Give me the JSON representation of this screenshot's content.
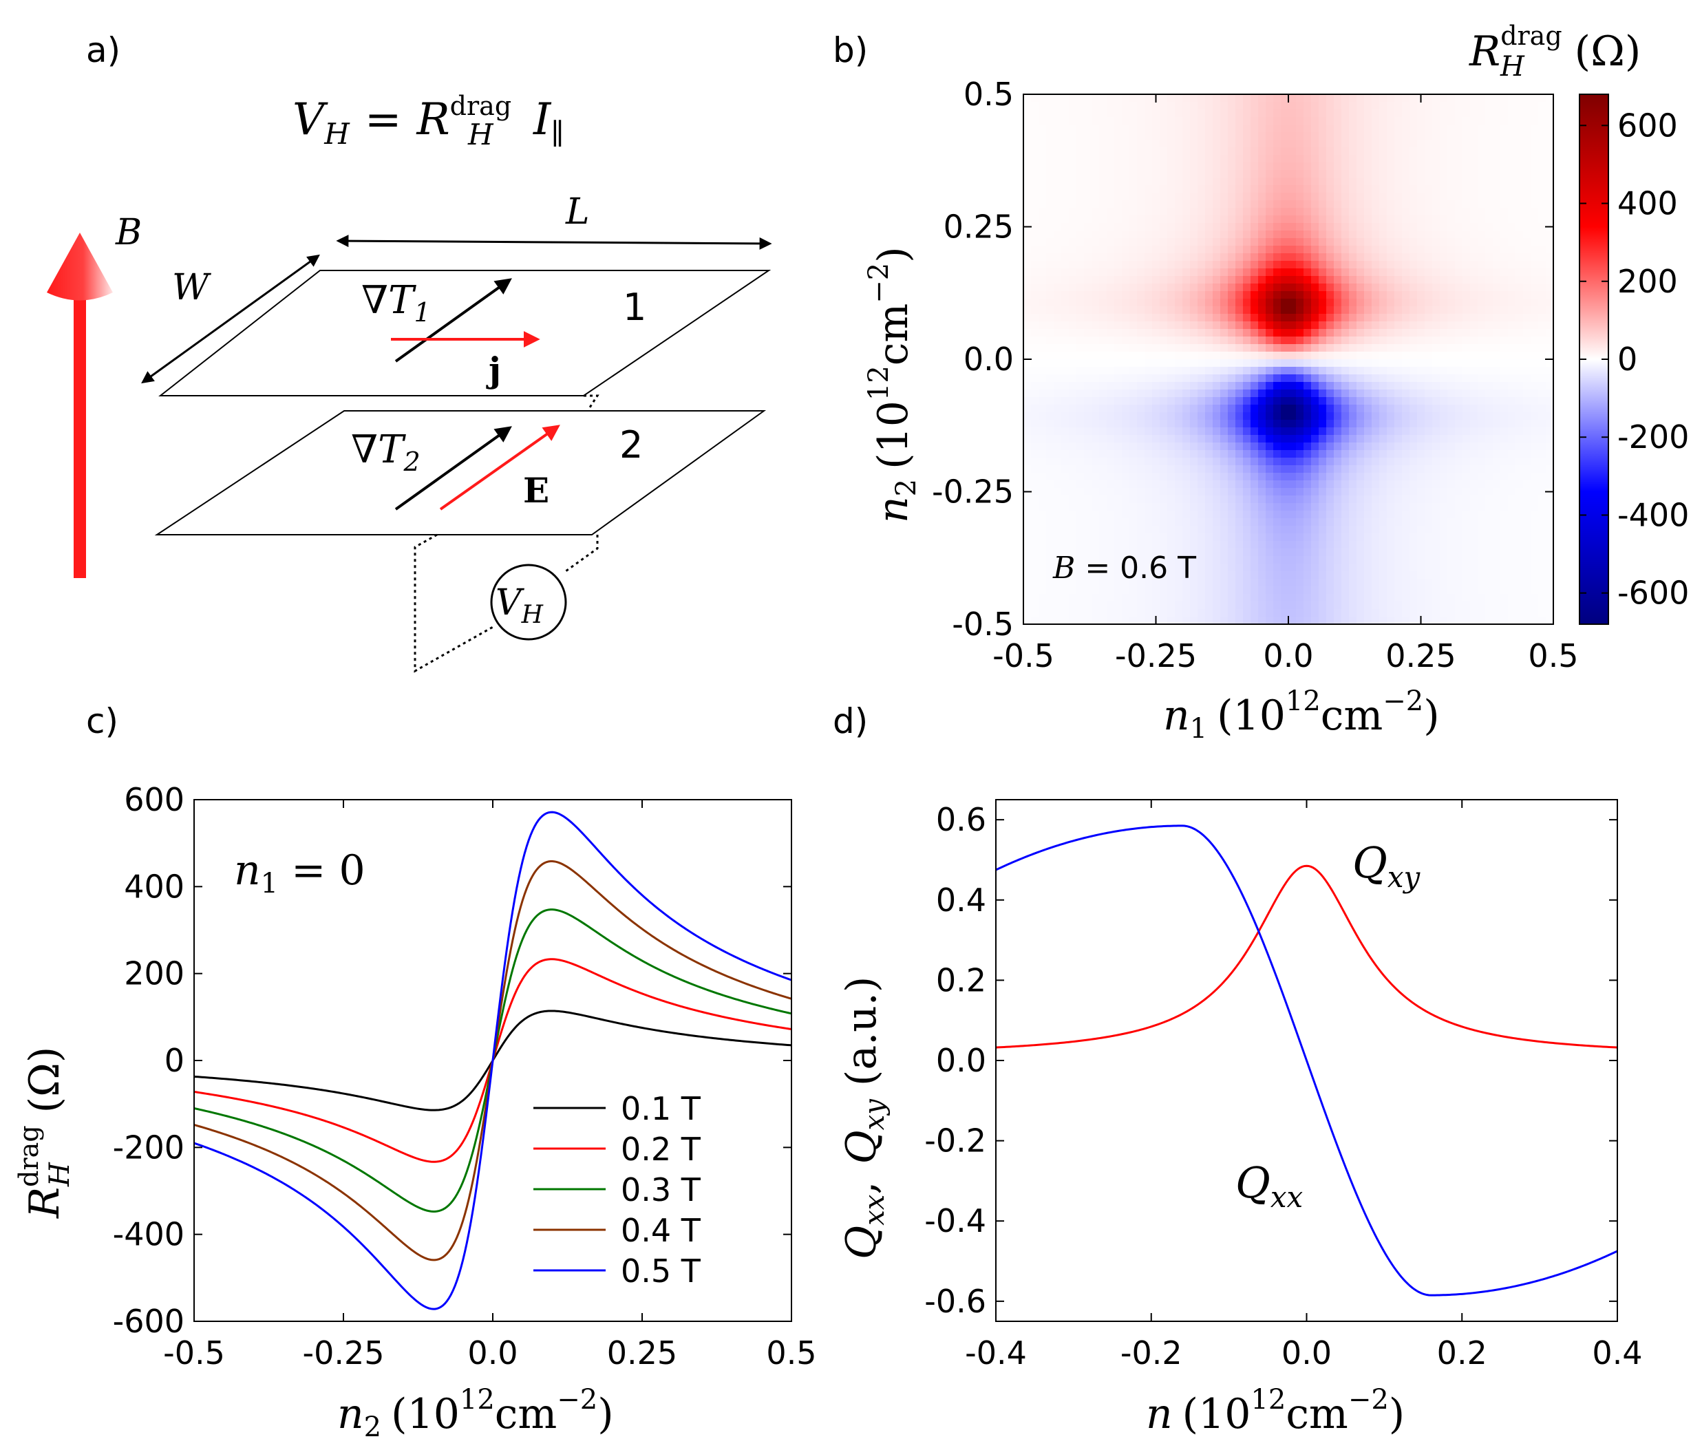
{
  "chart_data": [
    {
      "panel": "a)",
      "type": "diagram",
      "equation": {
        "lhs": "V",
        "lhs_sub": "H",
        "eq": "=",
        "r": "R",
        "r_sup": "drag",
        "r_sub": "H",
        "i": "I",
        "i_sub": "∥"
      },
      "labels": {
        "B": "B",
        "W": "W",
        "L": "L",
        "grad": "∇T",
        "grad1_sub": "1",
        "grad2_sub": "2",
        "layer1": "1",
        "layer2": "2",
        "j": "j",
        "E": "E",
        "meter": "V",
        "meter_sub": "H"
      },
      "colors": {
        "arrow_red": "#ff1a1a",
        "arrow_black": "#000000"
      }
    },
    {
      "panel": "b)",
      "type": "heatmap",
      "xlabel": "n",
      "xlabel_sub": "1",
      "xlabel_unit": "(10",
      "xlabel_exp": "12",
      "xlabel_unit2": "cm",
      "xlabel_exp2": "−2",
      "xlabel_close": ")",
      "ylabel": "n",
      "ylabel_sub": "2",
      "ylabel_unit": "(10",
      "ylabel_exp": "12",
      "ylabel_unit2": "cm",
      "ylabel_exp2": "−2",
      "ylabel_close": ")",
      "xlim": [
        -0.5,
        0.5
      ],
      "ylim": [
        -0.5,
        0.5
      ],
      "xticks": [
        "-0.5",
        "-0.25",
        "0.0",
        "0.25",
        "0.5"
      ],
      "yticks": [
        "0.5",
        "0.25",
        "0.0",
        "-0.25",
        "-0.5"
      ],
      "annotation": {
        "var": "B",
        "text": " = 0.6 T"
      },
      "colorbar": {
        "label": "R",
        "label_sup": "drag",
        "label_sub": "H",
        "unit": "(Ω)",
        "range": [
          -680,
          680
        ],
        "ticks": [
          "600",
          "400",
          "200",
          "0",
          "-200",
          "-400",
          "-600"
        ],
        "tick_values": [
          600,
          400,
          200,
          0,
          -200,
          -400,
          -600
        ],
        "colors": [
          "#00007f",
          "#0000ff",
          "#ffffff",
          "#ff0000",
          "#7f0000"
        ]
      },
      "peak": {
        "n1": 0.0,
        "n2": 0.1,
        "value": 680
      },
      "trough": {
        "n1": 0.0,
        "n2": -0.1,
        "value": -680
      }
    },
    {
      "panel": "c)",
      "type": "line",
      "xlabel": "n",
      "xlabel_sub": "2",
      "xlabel_unit": "(10",
      "xlabel_exp": "12",
      "xlabel_unit2": "cm",
      "xlabel_exp2": "−2",
      "xlabel_close": ")",
      "ylabel": "R",
      "ylabel_sup": "drag",
      "ylabel_sub": "H",
      "ylabel_unit": "(Ω)",
      "xlim": [
        -0.5,
        0.5
      ],
      "ylim": [
        -600,
        600
      ],
      "xticks": [
        "-0.5",
        "-0.25",
        "0.0",
        "0.25",
        "0.5"
      ],
      "yticks": [
        "600",
        "400",
        "200",
        "0",
        "-200",
        "-400",
        "-600"
      ],
      "annotation": {
        "var": "n",
        "sub": "1",
        "text": " = 0"
      },
      "series": [
        {
          "name": "0.1 T",
          "color": "#000000",
          "peak": 115,
          "x_end": [
            -37,
            35
          ]
        },
        {
          "name": "0.2 T",
          "color": "#ff0000",
          "peak": 235,
          "x_end": [
            -72,
            72
          ]
        },
        {
          "name": "0.3 T",
          "color": "#007700",
          "peak": 350,
          "x_end": [
            -110,
            108
          ]
        },
        {
          "name": "0.4 T",
          "color": "#8b3300",
          "peak": 462,
          "x_end": [
            -148,
            142
          ]
        },
        {
          "name": "0.5 T",
          "color": "#0000ff",
          "peak": 575,
          "x_end": [
            -190,
            185
          ]
        }
      ],
      "peak_position": 0.1
    },
    {
      "panel": "d)",
      "type": "line",
      "xlabel": "n",
      "xlabel_unit": "(10",
      "xlabel_exp": "12",
      "xlabel_unit2": "cm",
      "xlabel_exp2": "−2",
      "xlabel_close": ")",
      "ylabel_parts": [
        "Q",
        "xx",
        ", ",
        "Q",
        "xy",
        " (a.u.)"
      ],
      "xlim": [
        -0.4,
        0.4
      ],
      "ylim": [
        -0.65,
        0.65
      ],
      "xticks": [
        "-0.4",
        "-0.2",
        "0.0",
        "0.2",
        "0.4"
      ],
      "yticks": [
        "0.6",
        "0.4",
        "0.2",
        "0.0",
        "-0.2",
        "-0.4",
        "-0.6"
      ],
      "series": [
        {
          "name": "Q",
          "sub": "xy",
          "color": "#ff0000",
          "peak": 0.485,
          "peak_x": 0.0,
          "end": 0.012
        },
        {
          "name": "Q",
          "sub": "xx",
          "color": "#0000ff",
          "max": 0.585,
          "max_x": -0.16,
          "end": 0.475
        }
      ]
    }
  ]
}
